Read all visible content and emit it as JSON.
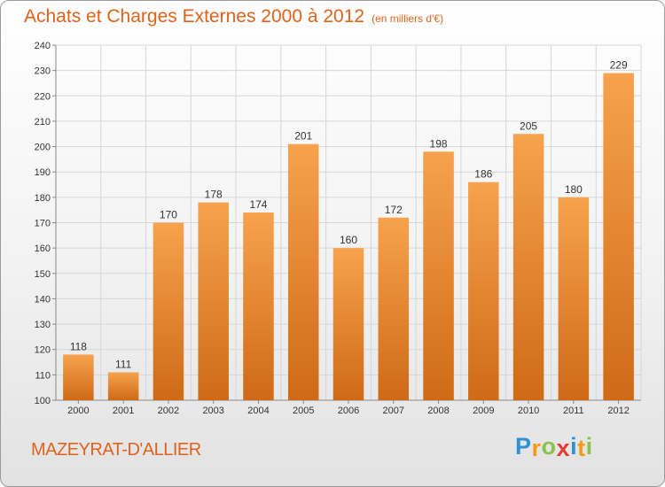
{
  "header": {
    "title": "Achats et Charges Externes 2000 à 2012",
    "unit": "(en milliers d'€)"
  },
  "footer": {
    "city": "MAZEYRAT-D'ALLIER",
    "logo_letters": [
      "P",
      "r",
      "o",
      "x",
      "i",
      "t",
      "i"
    ],
    "logo_colors": [
      "#2f8fd8",
      "#f39c12",
      "#8bc34a",
      "#e53935",
      "#2f8fd8",
      "#f39c12",
      "#8bc34a"
    ]
  },
  "colors": {
    "bar_top": "#f7a24e",
    "bar_bottom": "#cf6a16",
    "accent": "#e0621b",
    "grid": "#d6d6d6"
  },
  "chart_data": {
    "type": "bar",
    "title": "Achats et Charges Externes 2000 à 2012",
    "categories": [
      "2000",
      "2001",
      "2002",
      "2003",
      "2004",
      "2005",
      "2006",
      "2007",
      "2008",
      "2009",
      "2010",
      "2011",
      "2012"
    ],
    "values": [
      118,
      111,
      170,
      178,
      174,
      201,
      160,
      172,
      198,
      186,
      205,
      180,
      229
    ],
    "ylim": [
      100,
      240
    ],
    "yticks": [
      100,
      110,
      120,
      130,
      140,
      150,
      160,
      170,
      180,
      190,
      200,
      210,
      220,
      230,
      240
    ],
    "grid": true,
    "xlabel": "",
    "ylabel": ""
  }
}
